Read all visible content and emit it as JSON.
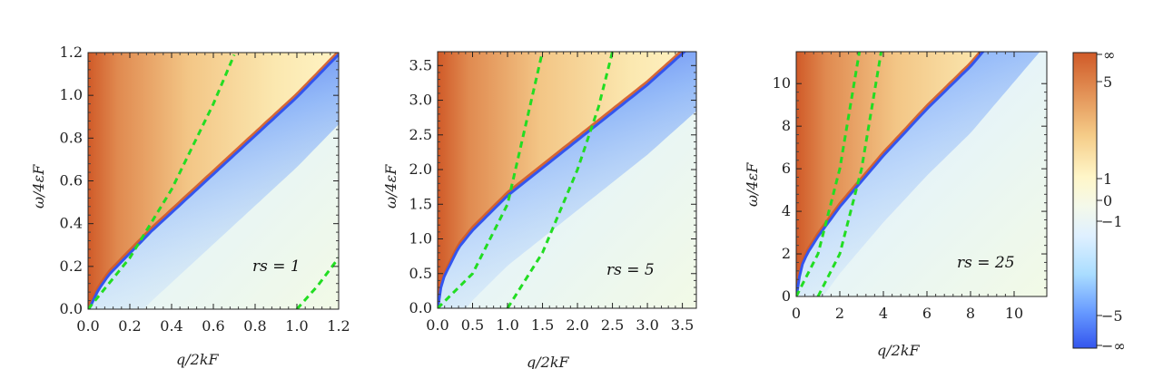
{
  "colors": {
    "dashed_line": "#22dd22",
    "colormap": [
      "#3355ee",
      "#6699ff",
      "#aaddff",
      "#eaf6ff",
      "#f2fae8",
      "#fff6c8",
      "#f5cc88",
      "#e08a50",
      "#d05a28"
    ]
  },
  "colorbar": {
    "ticks": [
      "∞",
      "5",
      "1",
      "0",
      "−1",
      "−5",
      "−∞"
    ]
  },
  "chart_data": [
    {
      "type": "heatmap",
      "title": "",
      "xlabel": "q/2kF",
      "ylabel": "ω/4εF",
      "xlim": [
        0,
        1.2
      ],
      "ylim": [
        0,
        1.2
      ],
      "xticks": [
        "0.0",
        "0.2",
        "0.4",
        "0.6",
        "0.8",
        "1.0",
        "1.2"
      ],
      "xtick_values": [
        0,
        0.2,
        0.4,
        0.6,
        0.8,
        1.0,
        1.2
      ],
      "yticks": [
        "0.0",
        "0.2",
        "0.4",
        "0.6",
        "0.8",
        "1.0",
        "1.2"
      ],
      "ytick_values": [
        0,
        0.2,
        0.4,
        0.6,
        0.8,
        1.0,
        1.2
      ],
      "annotation": "rs = 1",
      "plasmon_boundary": [
        [
          0,
          0
        ],
        [
          0.05,
          0.1
        ],
        [
          0.1,
          0.17
        ],
        [
          0.2,
          0.27
        ],
        [
          0.3,
          0.37
        ],
        [
          0.4,
          0.46
        ],
        [
          0.6,
          0.64
        ],
        [
          0.8,
          0.82
        ],
        [
          1.0,
          1.0
        ],
        [
          1.2,
          1.2
        ]
      ],
      "dashed_lines": [
        [
          [
            0,
            0
          ],
          [
            0.2,
            0.24
          ],
          [
            0.4,
            0.56
          ],
          [
            0.6,
            0.96
          ],
          [
            0.7,
            1.19
          ]
        ],
        [
          [
            1.0,
            0
          ],
          [
            1.1,
            0.11
          ],
          [
            1.2,
            0.24
          ]
        ]
      ]
    },
    {
      "type": "heatmap",
      "title": "",
      "xlabel": "q/2kF",
      "ylabel": "ω/4εF",
      "xlim": [
        0,
        3.7
      ],
      "ylim": [
        0,
        3.7
      ],
      "xticks": [
        "0.0",
        "0.5",
        "1.0",
        "1.5",
        "2.0",
        "2.5",
        "3.0",
        "3.5"
      ],
      "xtick_values": [
        0,
        0.5,
        1.0,
        1.5,
        2.0,
        2.5,
        3.0,
        3.5
      ],
      "yticks": [
        "0.0",
        "0.5",
        "1.0",
        "1.5",
        "2.0",
        "2.5",
        "3.0",
        "3.5"
      ],
      "ytick_values": [
        0,
        0.5,
        1.0,
        1.5,
        2.0,
        2.5,
        3.0,
        3.5
      ],
      "annotation": "rs = 5",
      "plasmon_boundary": [
        [
          0,
          0
        ],
        [
          0.05,
          0.35
        ],
        [
          0.1,
          0.5
        ],
        [
          0.3,
          0.9
        ],
        [
          0.5,
          1.15
        ],
        [
          1.0,
          1.65
        ],
        [
          1.5,
          2.05
        ],
        [
          2.0,
          2.45
        ],
        [
          2.5,
          2.85
        ],
        [
          3.0,
          3.25
        ],
        [
          3.5,
          3.7
        ]
      ],
      "dashed_lines": [
        [
          [
            0,
            0
          ],
          [
            0.5,
            0.5
          ],
          [
            1.0,
            1.5
          ],
          [
            1.5,
            3.7
          ]
        ],
        [
          [
            1.0,
            0
          ],
          [
            1.5,
            0.8
          ],
          [
            2.0,
            2.0
          ],
          [
            2.3,
            2.9
          ],
          [
            2.5,
            3.7
          ]
        ]
      ]
    },
    {
      "type": "heatmap",
      "title": "",
      "xlabel": "q/2kF",
      "ylabel": "ω/4εF",
      "xlim": [
        0,
        11.5
      ],
      "ylim": [
        0,
        11.5
      ],
      "xticks": [
        "0",
        "2",
        "4",
        "6",
        "8",
        "10"
      ],
      "xtick_values": [
        0,
        2,
        4,
        6,
        8,
        10
      ],
      "yticks": [
        "0",
        "2",
        "4",
        "6",
        "8",
        "10"
      ],
      "ytick_values": [
        0,
        2,
        4,
        6,
        8,
        10
      ],
      "annotation": "rs = 25",
      "plasmon_boundary": [
        [
          0,
          0
        ],
        [
          0.2,
          1.4
        ],
        [
          0.5,
          2.1
        ],
        [
          1.0,
          2.9
        ],
        [
          1.5,
          3.6
        ],
        [
          2.0,
          4.3
        ],
        [
          3.0,
          5.5
        ],
        [
          4.0,
          6.7
        ],
        [
          5.0,
          7.8
        ],
        [
          6.0,
          8.9
        ],
        [
          7.0,
          9.9
        ],
        [
          8.0,
          10.9
        ],
        [
          8.5,
          11.5
        ]
      ],
      "dashed_lines": [
        [
          [
            0,
            0
          ],
          [
            1.0,
            2.0
          ],
          [
            2.0,
            6.0
          ],
          [
            2.9,
            11.5
          ]
        ],
        [
          [
            1.0,
            0
          ],
          [
            2.0,
            2.0
          ],
          [
            3.0,
            6.0
          ],
          [
            3.9,
            11.5
          ]
        ]
      ]
    }
  ]
}
